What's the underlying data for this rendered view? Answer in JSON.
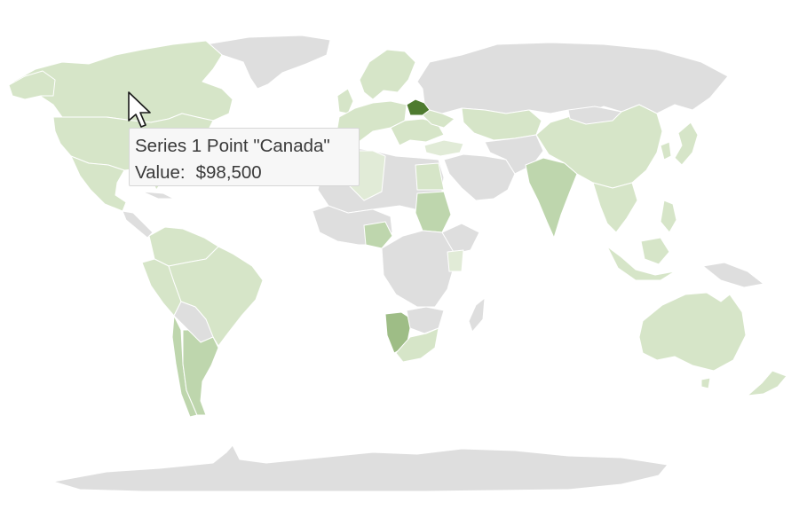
{
  "tooltip": {
    "series_label": "Series 1 Point \"Canada\"",
    "value_label": "Value:",
    "value": "$98,500"
  },
  "legend_colors": {
    "no_data": "#dedede",
    "lightest": "#e1ebd7",
    "light": "#d6e5c8",
    "medium": "#bed6ad",
    "strong": "#9ebd86",
    "highlight": "#4e7b2f"
  }
}
